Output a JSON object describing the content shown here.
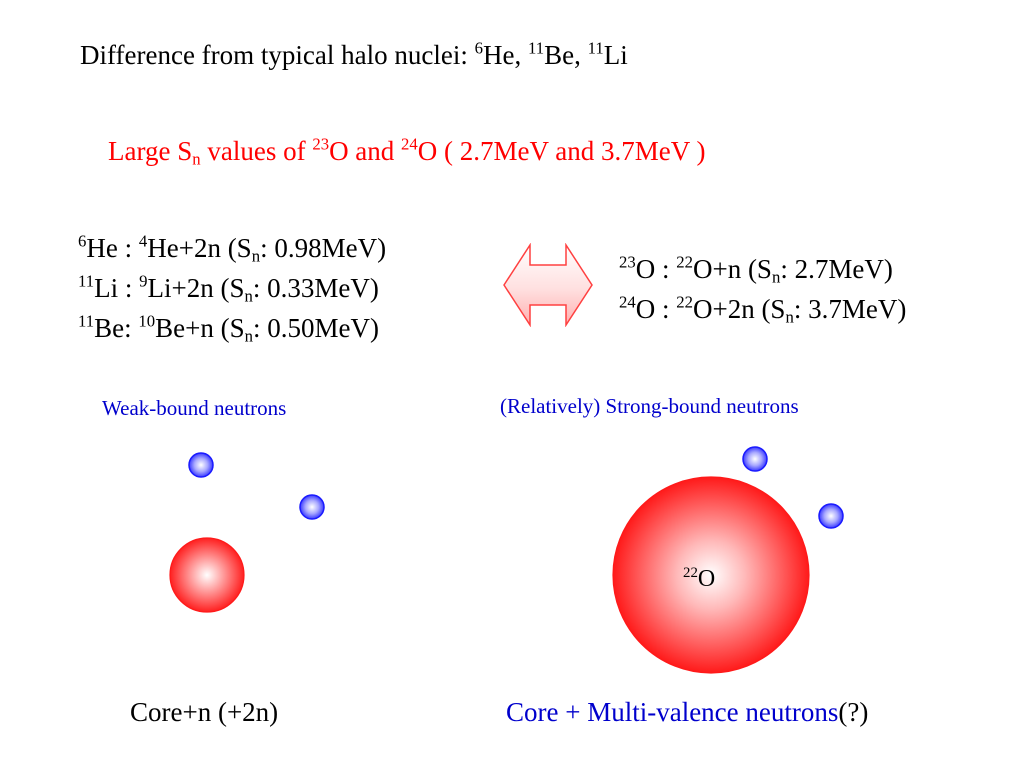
{
  "title": {
    "text": "Difference from typical halo nuclei: ",
    "n1_mass": "6",
    "n1_sym": "He",
    "sep1": ", ",
    "n2_mass": "11",
    "n2_sym": "Be",
    "sep2": ", ",
    "n3_mass": "11",
    "n3_sym": "Li"
  },
  "highlight": {
    "pre": "Large S",
    "sub": "n",
    "mid": " values of ",
    "a_mass": "23",
    "a_sym": "O and ",
    "b_mass": "24",
    "b_sym": "O ( 2.7MeV and 3.7MeV )"
  },
  "left_list": [
    {
      "m1": "6",
      "s1": "He : ",
      "m2": "4",
      "s2": "He+2n (S",
      "sub": "n",
      "val": ": 0.98MeV)"
    },
    {
      "m1": "11",
      "s1": "Li : ",
      "m2": "9",
      "s2": "Li+2n  (S",
      "sub": "n",
      "val": ": 0.33MeV)"
    },
    {
      "m1": "11",
      "s1": "Be: ",
      "m2": "10",
      "s2": "Be+n  (S",
      "sub": "n",
      "val": ": 0.50MeV)"
    }
  ],
  "right_list": [
    {
      "m1": "23",
      "s1": "O : ",
      "m2": "22",
      "s2": "O+n   (S",
      "sub": "n",
      "val": ": 2.7MeV)"
    },
    {
      "m1": "24",
      "s1": "O : ",
      "m2": "22",
      "s2": "O+2n (S",
      "sub": "n",
      "val": ": 3.7MeV)"
    }
  ],
  "captions": {
    "left": "Weak-bound neutrons",
    "right": "(Relatively) Strong-bound neutrons"
  },
  "core_label": {
    "mass": "22",
    "sym": "O"
  },
  "bottom": {
    "left": "Core+n (+2n)",
    "right_main": "Core + Multi-valence neutrons",
    "right_tail": "(?)"
  },
  "colors": {
    "red": "#ff0000",
    "blue_text": "#0000cc",
    "core_edge": "#ff0000",
    "neutron_edge": "#1a1aff"
  }
}
